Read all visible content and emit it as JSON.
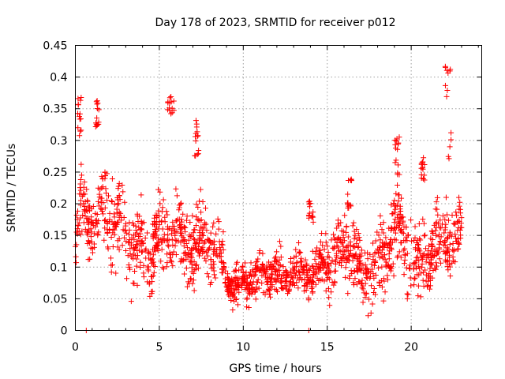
{
  "chart_data": {
    "type": "scatter",
    "title": "Day 178 of 2023, SRMTID for receiver p012",
    "xlabel": "GPS time / hours",
    "ylabel": "SRMTID / TECUs",
    "xlim": [
      0,
      24.2
    ],
    "ylim": [
      0,
      0.45
    ],
    "xticks": [
      0,
      5,
      10,
      15,
      20
    ],
    "xtick_labels": [
      "0",
      "5",
      "10",
      "15",
      "20"
    ],
    "yticks": [
      0,
      0.05,
      0.1,
      0.15,
      0.2,
      0.25,
      0.3,
      0.35,
      0.4,
      0.45
    ],
    "ytick_labels": [
      "0",
      "0.05",
      "0.1",
      "0.15",
      "0.2",
      "0.25",
      "0.3",
      "0.35",
      "0.4",
      "0.45"
    ],
    "grid": true,
    "marker": "plus",
    "color": "#ff0000",
    "series": [
      {
        "name": "p012",
        "x_range": [
          0,
          23.0
        ],
        "profile": [
          [
            0.0,
            0.11
          ],
          [
            0.25,
            0.19
          ],
          [
            0.5,
            0.2
          ],
          [
            1.0,
            0.17
          ],
          [
            1.5,
            0.19
          ],
          [
            2.0,
            0.18
          ],
          [
            2.5,
            0.16
          ],
          [
            3.0,
            0.15
          ],
          [
            3.5,
            0.14
          ],
          [
            4.0,
            0.12
          ],
          [
            4.5,
            0.12
          ],
          [
            5.0,
            0.14
          ],
          [
            5.5,
            0.16
          ],
          [
            6.0,
            0.15
          ],
          [
            6.5,
            0.14
          ],
          [
            7.0,
            0.13
          ],
          [
            7.5,
            0.14
          ],
          [
            8.0,
            0.14
          ],
          [
            8.5,
            0.13
          ],
          [
            9.0,
            0.08
          ],
          [
            9.5,
            0.07
          ],
          [
            10.0,
            0.08
          ],
          [
            10.5,
            0.08
          ],
          [
            11.0,
            0.09
          ],
          [
            11.5,
            0.09
          ],
          [
            12.0,
            0.09
          ],
          [
            12.5,
            0.09
          ],
          [
            13.0,
            0.09
          ],
          [
            13.5,
            0.09
          ],
          [
            14.0,
            0.09
          ],
          [
            14.5,
            0.1
          ],
          [
            15.0,
            0.11
          ],
          [
            15.5,
            0.12
          ],
          [
            16.0,
            0.13
          ],
          [
            16.5,
            0.13
          ],
          [
            17.0,
            0.09
          ],
          [
            17.5,
            0.09
          ],
          [
            18.0,
            0.1
          ],
          [
            18.5,
            0.12
          ],
          [
            19.0,
            0.17
          ],
          [
            19.5,
            0.15
          ],
          [
            20.0,
            0.13
          ],
          [
            20.5,
            0.1
          ],
          [
            21.0,
            0.12
          ],
          [
            21.5,
            0.13
          ],
          [
            22.0,
            0.15
          ],
          [
            22.5,
            0.14
          ],
          [
            23.0,
            0.15
          ]
        ],
        "spread": [
          [
            0.0,
            0.04
          ],
          [
            2.0,
            0.05
          ],
          [
            5.0,
            0.05
          ],
          [
            8.5,
            0.04
          ],
          [
            9.0,
            0.025
          ],
          [
            14.0,
            0.025
          ],
          [
            15.0,
            0.035
          ],
          [
            19.0,
            0.05
          ],
          [
            21.0,
            0.04
          ],
          [
            23.0,
            0.045
          ]
        ],
        "bursts": [
          {
            "x": [
              0.1,
              0.35
            ],
            "y": [
              0.3,
              0.39
            ]
          },
          {
            "x": [
              1.2,
              1.4
            ],
            "y": [
              0.32,
              0.365
            ]
          },
          {
            "x": [
              5.5,
              5.9
            ],
            "y": [
              0.34,
              0.37
            ]
          },
          {
            "x": [
              7.1,
              7.35
            ],
            "y": [
              0.27,
              0.335
            ]
          },
          {
            "x": [
              19.0,
              19.3
            ],
            "y": [
              0.24,
              0.31
            ]
          },
          {
            "x": [
              20.6,
              20.8
            ],
            "y": [
              0.23,
              0.275
            ]
          },
          {
            "x": [
              22.0,
              22.4
            ],
            "y": [
              0.27,
              0.425
            ]
          },
          {
            "x": [
              16.2,
              16.5
            ],
            "y": [
              0.19,
              0.24
            ]
          },
          {
            "x": [
              13.9,
              14.2
            ],
            "y": [
              0.17,
              0.205
            ]
          }
        ],
        "outliers": [
          [
            0.65,
            0.0
          ],
          [
            13.9,
            0.0
          ]
        ]
      }
    ]
  }
}
